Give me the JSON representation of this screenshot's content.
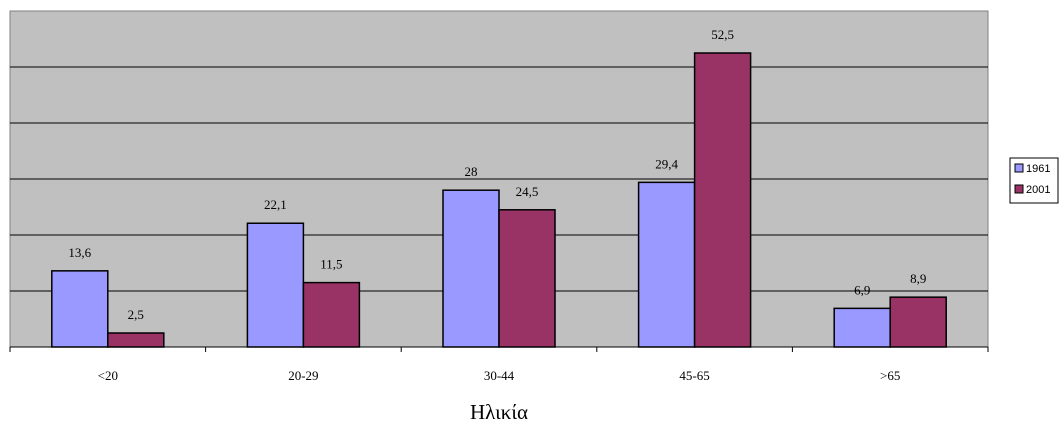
{
  "chart_data": {
    "type": "bar",
    "categories": [
      "<20",
      "20-29",
      "30-44",
      "45-65",
      ">65"
    ],
    "series": [
      {
        "name": "1961",
        "values": [
          13.6,
          22.1,
          28,
          29.4,
          6.9
        ],
        "labels": [
          "13,6",
          "22,1",
          "28",
          "29,4",
          "6,9"
        ],
        "color": "#9999ff"
      },
      {
        "name": "2001",
        "values": [
          2.5,
          11.5,
          24.5,
          52.5,
          8.9
        ],
        "labels": [
          "2,5",
          "11,5",
          "24,5",
          "52,5",
          "8,9"
        ],
        "color": "#993366"
      }
    ],
    "title": "",
    "xlabel": "Ηλικία",
    "ylabel": "",
    "ylim": [
      0,
      60
    ],
    "y_gridline_step": 10,
    "y_tick_labels_shown": false,
    "grid": true,
    "plot_background": "#c0c0c0",
    "legend_position": "right"
  }
}
